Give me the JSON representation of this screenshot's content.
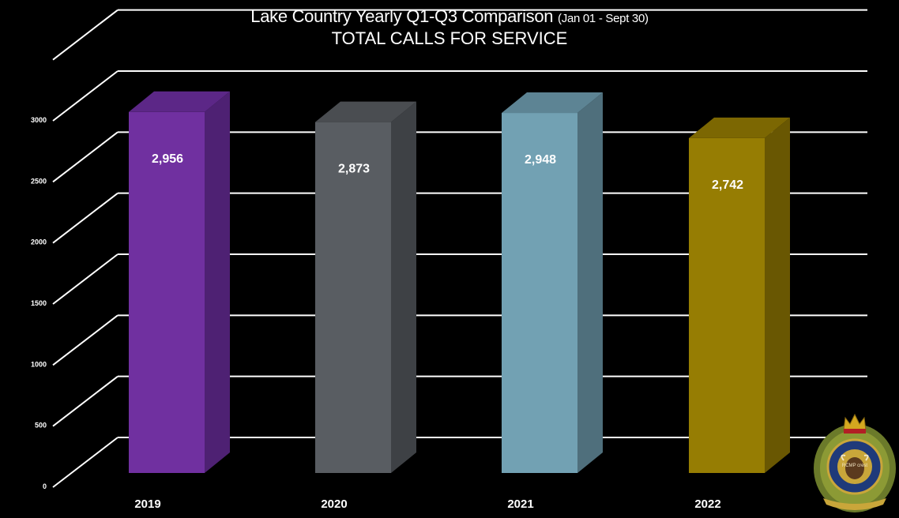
{
  "title": {
    "main": "Lake Country Yearly Q1-Q3 Comparison",
    "range": "(Jan 01 - Sept 30)",
    "subtitle": "TOTAL CALLS FOR SERVICE"
  },
  "chart_data": {
    "type": "bar",
    "title": "Lake Country Yearly Q1-Q3 Comparison (Jan 01 - Sept 30) TOTAL CALLS FOR SERVICE",
    "xlabel": "",
    "ylabel": "",
    "categories": [
      "2019",
      "2020",
      "2021",
      "2022"
    ],
    "values": [
      2956,
      2873,
      2948,
      2742
    ],
    "data_labels": [
      "2,956",
      "2,873",
      "2,948",
      "2,742"
    ],
    "yticks": [
      0,
      500,
      1000,
      1500,
      2000,
      2500,
      3000
    ],
    "ytick_labels": [
      "0",
      "500",
      "1000",
      "1500",
      "2000",
      "2500",
      "3000"
    ],
    "ylim": [
      0,
      3500
    ],
    "grid": true,
    "bar_colors": [
      {
        "front": "#7030a0",
        "side": "#4e2173",
        "top": "#5c2787"
      },
      {
        "front": "#595d62",
        "side": "#3e4145",
        "top": "#4a4d51"
      },
      {
        "front": "#72a1b3",
        "side": "#4f6f7c",
        "top": "#5d8494"
      },
      {
        "front": "#967d03",
        "side": "#695702",
        "top": "#7c6702"
      }
    ]
  },
  "logo": {
    "name": "RCMP crest"
  }
}
